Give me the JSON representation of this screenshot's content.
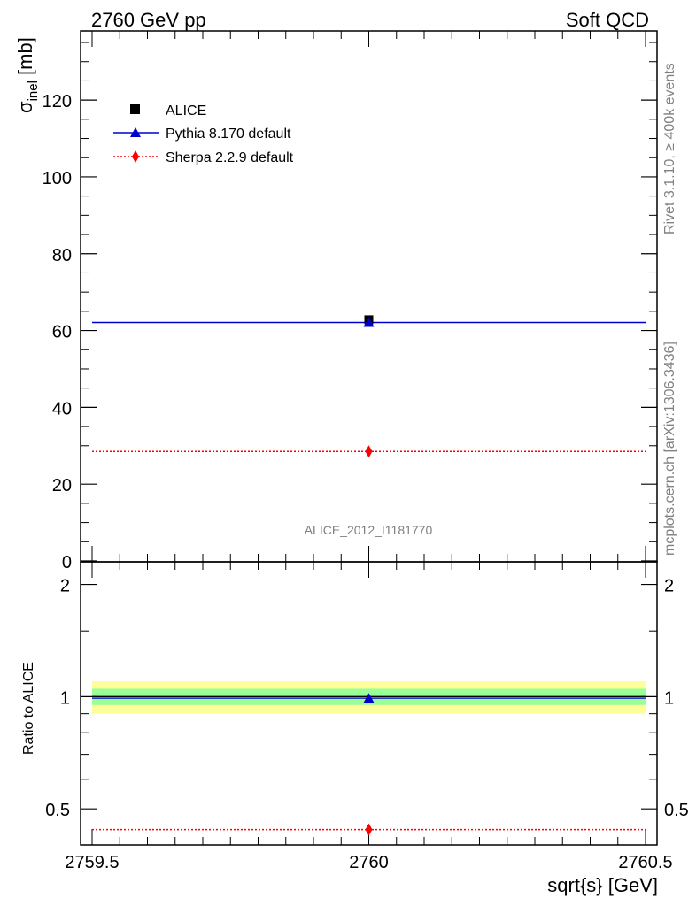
{
  "header": {
    "left": "2760 GeV pp",
    "right": "Soft QCD"
  },
  "side_labels": {
    "rivet": "Rivet 3.1.10, ≥ 400k events",
    "source": "mcplots.cern.ch [arXiv:1306.3436]"
  },
  "watermark": "ALICE_2012_I1181770",
  "colors": {
    "pythia": "#0000cc",
    "sherpa": "#ff0000",
    "data": "#000000",
    "band_outer": "#ffff99",
    "band_inner": "#99ff99"
  },
  "chart_data": [
    {
      "type": "scatter",
      "panel": "main",
      "ylabel_main": "σ",
      "ylabel_sub": "inel",
      "ylabel_unit": " [mb]",
      "xlim": [
        2759.5,
        2760.5
      ],
      "ylim": [
        0,
        138
      ],
      "yticks": [
        0,
        20,
        40,
        60,
        80,
        100,
        120
      ],
      "legend_position": "top-left",
      "series": [
        {
          "name": "ALICE",
          "marker": "square",
          "x": [
            2760
          ],
          "y": [
            62.8
          ]
        },
        {
          "name": "Pythia 8.170 default",
          "marker": "triangle",
          "x": [
            2760
          ],
          "y": [
            62.1
          ],
          "xerr": [
            2759.5,
            2760.5
          ]
        },
        {
          "name": "Sherpa 2.2.9 default",
          "marker": "diamond",
          "x": [
            2760
          ],
          "y": [
            28.5
          ],
          "xerr": [
            2759.5,
            2760.5
          ]
        }
      ]
    },
    {
      "type": "scatter",
      "panel": "ratio",
      "ylabel": "Ratio to ALICE",
      "xlabel": "sqrt{s} [GeV]",
      "scale": "log",
      "xlim": [
        2759.5,
        2760.5
      ],
      "ylim": [
        0.4,
        2.3
      ],
      "yticks": [
        0.5,
        1,
        2
      ],
      "ytick_labels": [
        "0.5",
        "1",
        "2"
      ],
      "xticks": [
        2759.5,
        2760,
        2760.5
      ],
      "xtick_labels": [
        "2759.5",
        "2760",
        "2760.5"
      ],
      "band_inner": [
        0.95,
        1.05
      ],
      "band_outer": [
        0.9,
        1.1
      ],
      "series": [
        {
          "name": "Pythia 8.170 default",
          "x": [
            2760
          ],
          "y": [
            0.99
          ]
        },
        {
          "name": "Sherpa 2.2.9 default",
          "x": [
            2760
          ],
          "y": [
            0.44
          ]
        }
      ]
    }
  ]
}
